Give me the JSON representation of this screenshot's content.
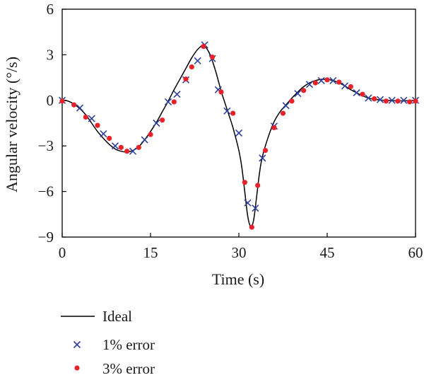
{
  "chart_data": {
    "type": "line",
    "xlabel": "Time (s)",
    "ylabel": "Angular velocity (°/s)",
    "xlim": [
      0,
      60
    ],
    "ylim": [
      -9,
      6
    ],
    "xticks": [
      0,
      15,
      30,
      45,
      60
    ],
    "yticks": [
      6,
      3,
      0,
      -3,
      -6,
      -9
    ],
    "xtick_labels": [
      "0",
      "15",
      "30",
      "45",
      "60"
    ],
    "ytick_labels": [
      "6",
      "3",
      "0",
      "−3",
      "−6",
      "−9"
    ],
    "grid": false,
    "legend_placement": "bottom-left, below plot",
    "series": [
      {
        "name": "Ideal",
        "style": "line",
        "color": "#000000",
        "x": [
          0,
          1,
          2,
          3,
          4,
          5,
          6,
          7,
          8,
          9,
          10,
          11,
          12,
          13,
          14,
          15,
          16,
          17,
          18,
          19,
          20,
          21,
          22,
          23,
          24,
          25,
          26,
          27,
          28,
          29,
          30,
          30.5,
          31,
          31.5,
          32,
          32.5,
          33,
          33.5,
          34,
          35,
          36,
          37,
          38,
          39,
          40,
          41,
          42,
          43,
          44,
          45,
          46,
          47,
          48,
          49,
          50,
          51,
          52,
          53,
          54,
          55,
          56,
          57,
          58,
          59,
          60
        ],
        "y": [
          0,
          -0.05,
          -0.25,
          -0.55,
          -0.95,
          -1.5,
          -2.05,
          -2.5,
          -2.9,
          -3.2,
          -3.35,
          -3.4,
          -3.3,
          -3.05,
          -2.6,
          -2.05,
          -1.45,
          -0.75,
          -0.05,
          0.7,
          1.4,
          2.1,
          2.8,
          3.35,
          3.6,
          3.1,
          2.0,
          0.6,
          -0.6,
          -1.8,
          -3.3,
          -4.4,
          -6.0,
          -7.6,
          -8.3,
          -7.9,
          -6.4,
          -4.8,
          -3.7,
          -2.4,
          -1.4,
          -0.75,
          -0.3,
          0.15,
          0.55,
          0.9,
          1.15,
          1.3,
          1.38,
          1.38,
          1.3,
          1.15,
          0.95,
          0.7,
          0.5,
          0.3,
          0.15,
          0.07,
          0.02,
          0,
          -0.02,
          -0.03,
          -0.03,
          -0.02,
          0
        ]
      },
      {
        "name": "1% error",
        "style": "marker-x",
        "color": "#2f3f9e",
        "x": [
          0,
          3,
          5,
          7,
          9,
          12,
          14,
          16,
          18,
          19.5,
          21,
          23,
          24.2,
          25.5,
          26.5,
          28,
          30,
          31.5,
          32.8,
          34,
          36,
          38,
          40,
          42,
          44,
          46,
          48,
          50,
          52,
          54,
          56,
          58,
          60
        ],
        "y": [
          0,
          -0.5,
          -1.2,
          -2.2,
          -3.0,
          -3.35,
          -2.6,
          -1.5,
          -0.1,
          0.4,
          1.35,
          2.6,
          3.65,
          2.75,
          0.7,
          -0.7,
          -2.15,
          -6.75,
          -7.1,
          -3.8,
          -1.7,
          -0.35,
          0.45,
          1.05,
          1.3,
          1.3,
          0.95,
          0.5,
          0.15,
          0.05,
          0,
          0,
          0
        ]
      },
      {
        "name": "3% error",
        "style": "marker-dot",
        "color": "#e8222a",
        "x": [
          0,
          2,
          4,
          6,
          8,
          10,
          11,
          13,
          15,
          17,
          19,
          21,
          22,
          24,
          25.5,
          27,
          29,
          31,
          32.2,
          33.2,
          34.5,
          36,
          37.5,
          39,
          41,
          43,
          45,
          47,
          49,
          51,
          53,
          55,
          57,
          59,
          60
        ],
        "y": [
          -0.05,
          -0.3,
          -1.1,
          -1.65,
          -2.5,
          -3.1,
          -3.35,
          -3.1,
          -2.25,
          -1.3,
          -0.1,
          1.4,
          2.2,
          3.55,
          2.85,
          0.55,
          -0.85,
          -5.4,
          -8.35,
          -5.6,
          -3.3,
          -1.8,
          -0.85,
          -0.05,
          0.65,
          1.15,
          1.35,
          1.2,
          0.9,
          0.4,
          0.1,
          -0.05,
          -0.05,
          -0.1,
          -0.05
        ]
      }
    ]
  }
}
